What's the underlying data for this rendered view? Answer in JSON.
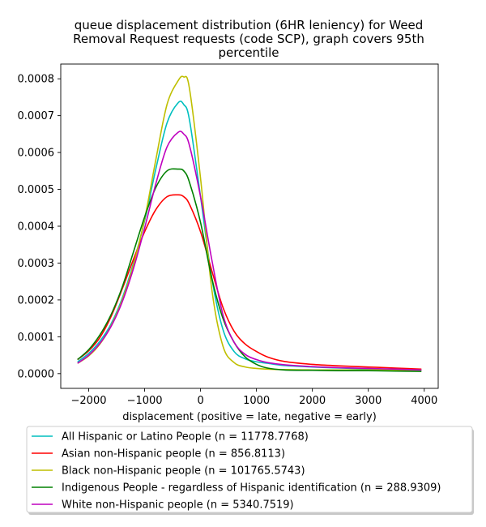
{
  "chart_data": {
    "type": "line",
    "title_lines": [
      "queue displacement distribution (6HR leniency) for Weed",
      "Removal Request  requests (code SCP), graph covers 95th",
      "percentile"
    ],
    "xlabel": "displacement (positive = late, negative = early)",
    "ylabel": "",
    "xlim": [
      -2500,
      4250
    ],
    "ylim": [
      -4e-05,
      0.00084
    ],
    "x_ticks": [
      -2000,
      -1000,
      0,
      1000,
      2000,
      3000,
      4000
    ],
    "x_tick_labels": [
      "−2000",
      "−1000",
      "0",
      "1000",
      "2000",
      "3000",
      "4000"
    ],
    "y_ticks": [
      0.0,
      0.0001,
      0.0002,
      0.0003,
      0.0004,
      0.0005,
      0.0006,
      0.0007,
      0.0008
    ],
    "y_tick_labels": [
      "0.0000",
      "0.0001",
      "0.0002",
      "0.0003",
      "0.0004",
      "0.0005",
      "0.0006",
      "0.0007",
      "0.0008"
    ],
    "grid": false,
    "legend_position": "below-chart",
    "x": [
      -2200,
      -2000,
      -1800,
      -1600,
      -1400,
      -1200,
      -1000,
      -800,
      -600,
      -400,
      -300,
      -200,
      0,
      200,
      400,
      600,
      800,
      1000,
      1200,
      1500,
      2000,
      2500,
      3000,
      3500,
      3950
    ],
    "series": [
      {
        "name": "All Hispanic or Latino People (n = 11778.7768)",
        "color": "#00bfbf",
        "values": [
          3.2e-05,
          5.5e-05,
          8.8e-05,
          0.000135,
          0.000205,
          0.0003,
          0.000415,
          0.000555,
          0.00068,
          0.000735,
          0.00073,
          0.00069,
          0.00048,
          0.00026,
          0.00012,
          6e-05,
          4e-05,
          3.2e-05,
          2.8e-05,
          2.2e-05,
          1.8e-05,
          1.5e-05,
          1.3e-05,
          1.1e-05,
          1e-05
        ]
      },
      {
        "name": "Asian non-Hispanic people (n = 856.8113)",
        "color": "#ff0000",
        "values": [
          3.8e-05,
          6.2e-05,
          9.8e-05,
          0.000155,
          0.00023,
          0.00031,
          0.000385,
          0.000445,
          0.00048,
          0.000485,
          0.00048,
          0.00046,
          0.000385,
          0.00028,
          0.00018,
          0.000115,
          8e-05,
          6e-05,
          4.5e-05,
          3.3e-05,
          2.5e-05,
          2.1e-05,
          1.8e-05,
          1.5e-05,
          1.2e-05
        ]
      },
      {
        "name": "Black non-Hispanic people (n = 101765.5743)",
        "color": "#bfbf00",
        "values": [
          2.8e-05,
          4.8e-05,
          8e-05,
          0.00013,
          0.0002,
          0.000295,
          0.00042,
          0.00058,
          0.00073,
          0.000795,
          0.000805,
          0.000775,
          0.00053,
          0.00023,
          7.5e-05,
          3e-05,
          1.8e-05,
          1.4e-05,
          1.2e-05,
          1.1e-05,
          1e-05,
          1e-05,
          1e-05,
          1e-05,
          1e-05
        ]
      },
      {
        "name": "Indigenous People - regardless of Hispanic identification (n = 288.9309)",
        "color": "#008000",
        "values": [
          3.8e-05,
          6.5e-05,
          0.000105,
          0.00016,
          0.000235,
          0.00033,
          0.000425,
          0.000505,
          0.00055,
          0.000555,
          0.00055,
          0.00052,
          0.00041,
          0.00026,
          0.00015,
          8.5e-05,
          4.5e-05,
          2.5e-05,
          1.5e-05,
          1e-05,
          9e-06,
          8e-06,
          8e-06,
          7e-06,
          6e-06
        ]
      },
      {
        "name": "White non-Hispanic people (n = 5340.7519)",
        "color": "#bf00bf",
        "values": [
          2.8e-05,
          5e-05,
          8.2e-05,
          0.000128,
          0.000195,
          0.000285,
          0.000395,
          0.000515,
          0.000615,
          0.000655,
          0.00065,
          0.00062,
          0.00048,
          0.00031,
          0.00016,
          8.5e-05,
          5.2e-05,
          3.8e-05,
          3e-05,
          2.4e-05,
          1.9e-05,
          1.6e-05,
          1.4e-05,
          1.2e-05,
          1e-05
        ]
      }
    ]
  }
}
